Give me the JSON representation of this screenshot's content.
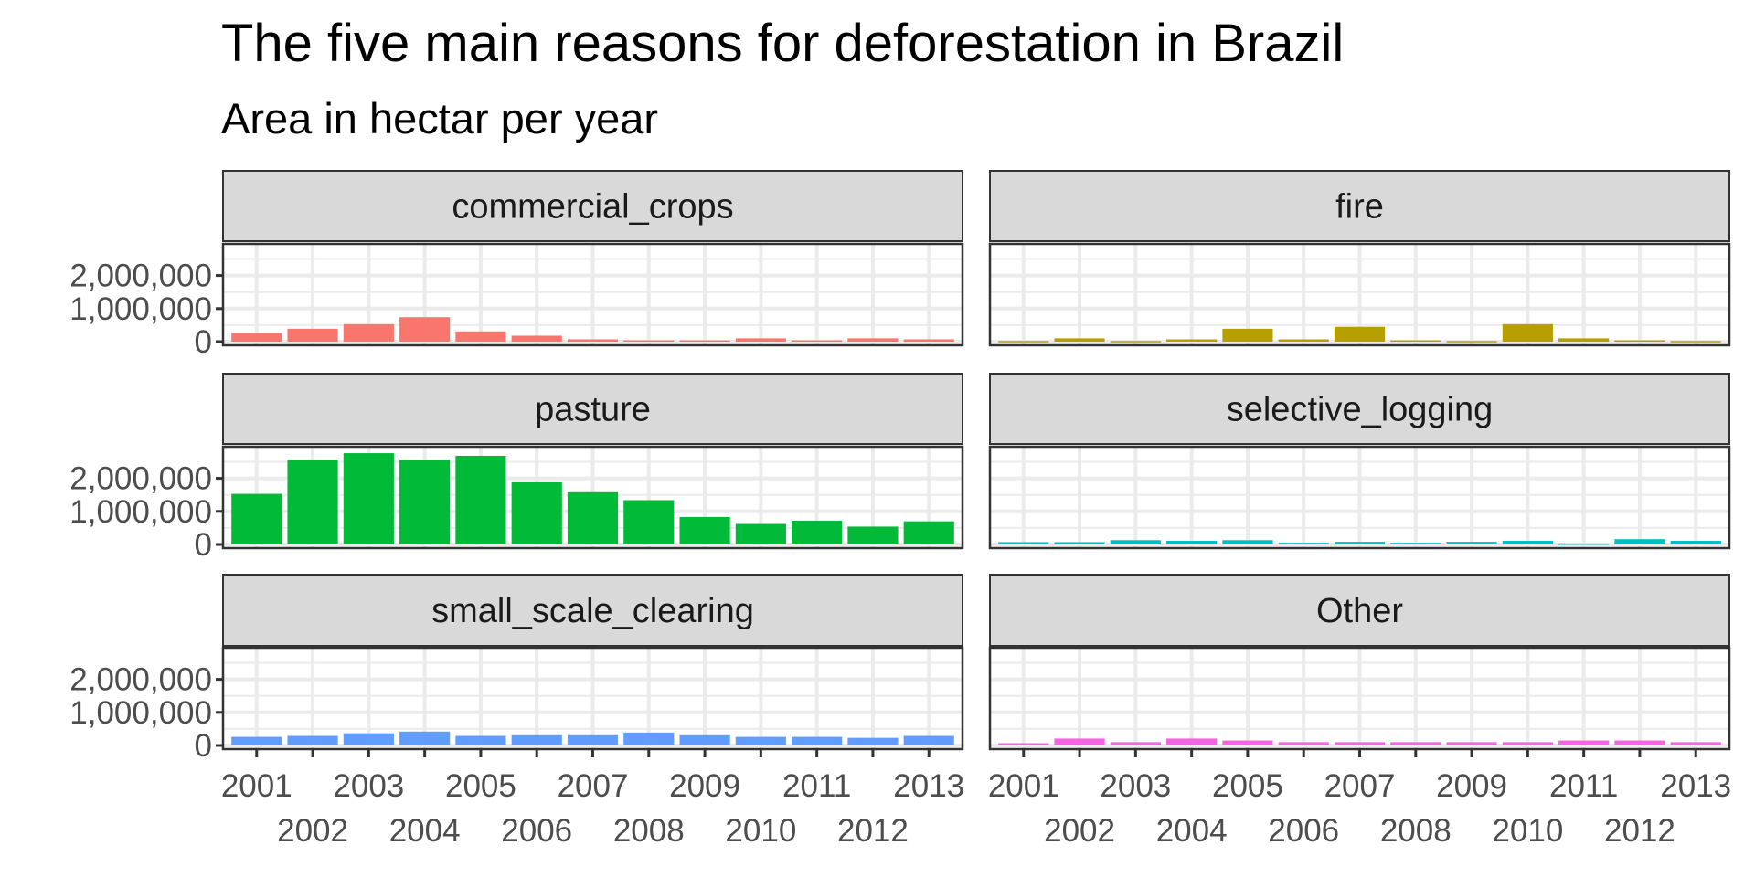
{
  "chart_data": {
    "type": "bar",
    "title": "The five main reasons for deforestation in Brazil",
    "subtitle": "Area in hectar per year",
    "xlabel": "",
    "ylabel": "",
    "grid": true,
    "ylim": [
      0,
      2900000
    ],
    "yticks": [
      0,
      1000000,
      2000000
    ],
    "ytick_labels": [
      "0",
      "1,000,000",
      "2,000,000"
    ],
    "categories": [
      "2001",
      "2002",
      "2003",
      "2004",
      "2005",
      "2006",
      "2007",
      "2008",
      "2009",
      "2010",
      "2011",
      "2012",
      "2013"
    ],
    "series": [
      {
        "name": "commercial_crops",
        "color": "#F8766D",
        "values": [
          260000,
          390000,
          530000,
          740000,
          310000,
          180000,
          70000,
          40000,
          40000,
          100000,
          40000,
          100000,
          70000
        ]
      },
      {
        "name": "fire",
        "color": "#B79F00",
        "values": [
          20000,
          100000,
          20000,
          70000,
          390000,
          70000,
          450000,
          40000,
          20000,
          530000,
          100000,
          40000,
          20000
        ]
      },
      {
        "name": "pasture",
        "color": "#00BA38",
        "values": [
          1530000,
          2570000,
          2760000,
          2570000,
          2680000,
          1880000,
          1580000,
          1340000,
          830000,
          620000,
          720000,
          540000,
          700000
        ]
      },
      {
        "name": "selective_logging",
        "color": "#00BFC4",
        "values": [
          70000,
          70000,
          130000,
          110000,
          130000,
          50000,
          80000,
          50000,
          80000,
          110000,
          30000,
          160000,
          110000
        ]
      },
      {
        "name": "small_scale_clearing",
        "color": "#619CFF",
        "values": [
          260000,
          290000,
          370000,
          420000,
          290000,
          310000,
          310000,
          390000,
          310000,
          260000,
          260000,
          230000,
          290000
        ]
      },
      {
        "name": "Other",
        "color": "#F564E3",
        "values": [
          70000,
          210000,
          100000,
          210000,
          150000,
          100000,
          100000,
          100000,
          100000,
          100000,
          150000,
          150000,
          100000
        ]
      }
    ]
  }
}
